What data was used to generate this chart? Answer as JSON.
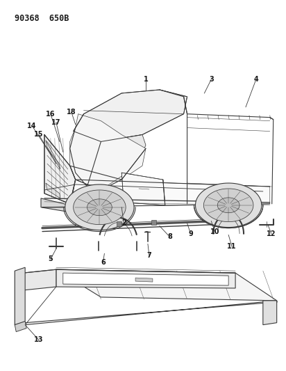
{
  "title": "90368  650B",
  "background_color": "#ffffff",
  "text_color": "#1a1a1a",
  "line_color": "#3a3a3a",
  "figsize": [
    4.12,
    5.33
  ],
  "dpi": 100
}
